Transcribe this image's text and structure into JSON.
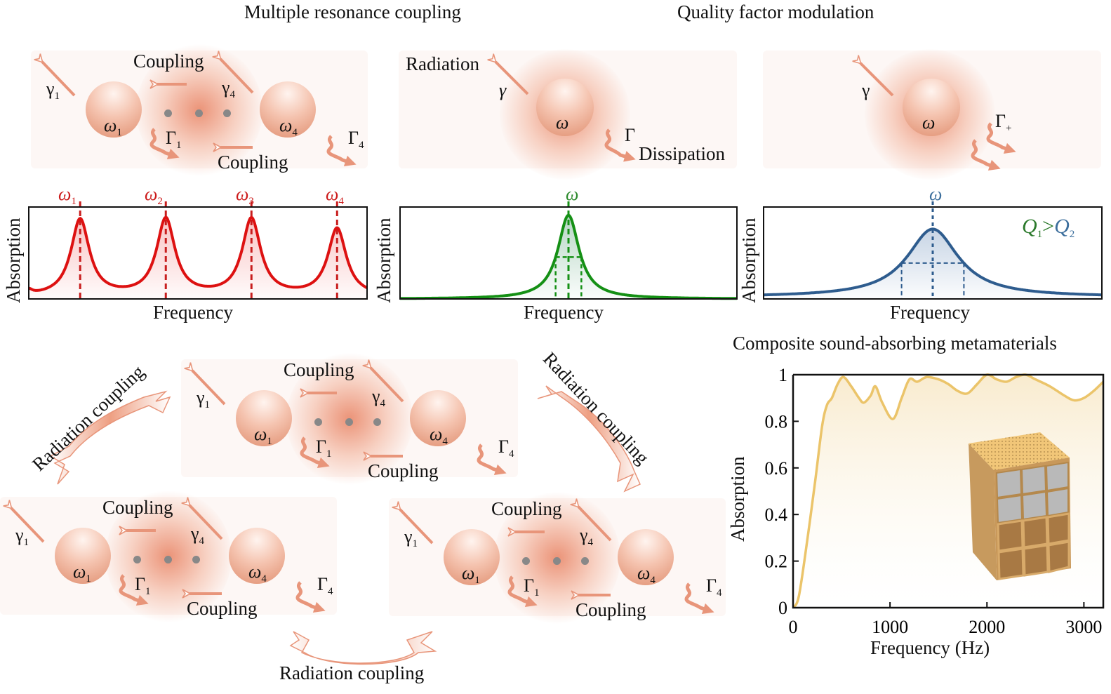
{
  "titles": {
    "multiple_resonance": "Multiple resonance coupling",
    "quality_factor": "Quality factor modulation",
    "composite": "Composite sound-absorbing metamaterials"
  },
  "labels": {
    "coupling": "Coupling",
    "radiation": "Radiation",
    "dissipation": "Dissipation",
    "radiation_coupling": "Radiation coupling",
    "frequency": "Frequency",
    "absorption": "Absorption",
    "frequency_hz": "Frequency (Hz)"
  },
  "symbols": {
    "gamma": "γ",
    "Gamma": "Γ",
    "omega": "ω",
    "sub1": "1",
    "sub4": "4",
    "plus": "+",
    "q_lhs": "Q",
    "q_gt": ">",
    "q_rhs": "Q",
    "q_sub1": "1",
    "q_sub2": "2"
  },
  "colors": {
    "red": "#dd1111",
    "green": "#159015",
    "blue": "#2e5c8e",
    "gold": "#ebc46a",
    "arrow": "#e8957a"
  },
  "chart_data": [
    {
      "type": "line",
      "title": "",
      "xlabel": "Frequency",
      "ylabel": "Absorption",
      "peaks": [
        {
          "label": "ω1",
          "sub": "1",
          "x": 1,
          "height": 0.91
        },
        {
          "label": "ω2",
          "sub": "2",
          "x": 2,
          "height": 0.91
        },
        {
          "label": "ω3",
          "sub": "3",
          "x": 3,
          "height": 0.91
        },
        {
          "label": "ω4",
          "sub": "4",
          "x": 4,
          "height": 0.8
        }
      ],
      "xlim": [
        0.4,
        4.35
      ],
      "ylim": [
        0,
        1
      ],
      "color": "#dd1111"
    },
    {
      "type": "line",
      "title": "",
      "xlabel": "Frequency",
      "ylabel": "Absorption",
      "peak_label": "ω",
      "center": 0,
      "peak": 0.91,
      "half_width": 0.13,
      "xlim": [
        -1.7,
        1.7
      ],
      "ylim": [
        0,
        1
      ],
      "color": "#159015"
    },
    {
      "type": "line",
      "title": "",
      "xlabel": "Frequency",
      "ylabel": "Absorption",
      "peak_label": "ω",
      "annotation": "Q1>Q2",
      "center": 0,
      "peak": 0.74,
      "half_width": 0.35,
      "xlim": [
        -1.9,
        1.9
      ],
      "ylim": [
        0,
        1
      ],
      "color": "#2e5c8e"
    },
    {
      "type": "line",
      "title": "Composite sound-absorbing metamaterials",
      "xlabel": "Frequency (Hz)",
      "ylabel": "Absorption",
      "xlim": [
        0,
        3200
      ],
      "ylim": [
        0,
        1
      ],
      "xticks": [
        0,
        1000,
        2000,
        3000
      ],
      "yticks": [
        0,
        0.2,
        0.4,
        0.6,
        0.8,
        1
      ],
      "ytick_labels": [
        "0",
        "0.2",
        "0.4",
        "0.6",
        "0.8",
        "1"
      ],
      "x": [
        0,
        60,
        150,
        230,
        300,
        350,
        400,
        460,
        520,
        600,
        680,
        730,
        800,
        850,
        920,
        1030,
        1120,
        1200,
        1280,
        1380,
        1500,
        1600,
        1700,
        1800,
        1900,
        2000,
        2100,
        2200,
        2300,
        2400,
        2500,
        2650,
        2800,
        2900,
        3000,
        3100,
        3200
      ],
      "y": [
        0,
        0.05,
        0.3,
        0.55,
        0.78,
        0.87,
        0.9,
        0.96,
        0.99,
        0.95,
        0.9,
        0.88,
        0.91,
        0.95,
        0.88,
        0.81,
        0.9,
        0.98,
        0.97,
        0.99,
        0.98,
        0.96,
        0.93,
        0.92,
        0.96,
        1.0,
        0.98,
        0.97,
        0.99,
        1.0,
        0.98,
        0.95,
        0.91,
        0.89,
        0.9,
        0.93,
        0.97
      ],
      "color": "#ebc46a"
    }
  ]
}
